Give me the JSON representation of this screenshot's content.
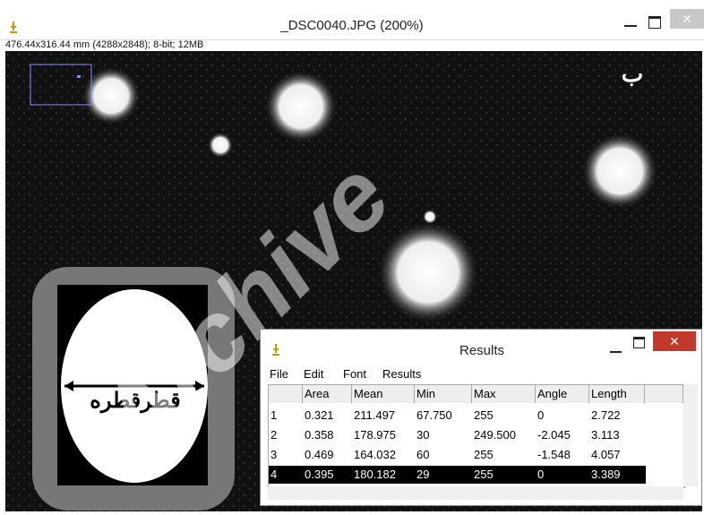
{
  "window": {
    "title": "_DSC0040.JPG (200%)",
    "info": "476.44x316.44 mm (4288x2848); 8-bit; 12MB"
  },
  "image": {
    "label": "ب",
    "inset_label": "قطرقطره",
    "watermark": "Archive"
  },
  "results": {
    "title": "Results",
    "menu": [
      "File",
      "Edit",
      "Font",
      "Results"
    ],
    "columns": [
      "Area",
      "Mean",
      "Min",
      "Max",
      "Angle",
      "Length"
    ],
    "rows": [
      [
        "1",
        "0.321",
        "211.497",
        "67.750",
        "255",
        "0",
        "2.722"
      ],
      [
        "2",
        "0.358",
        "178.975",
        "30",
        "249.500",
        "-2.045",
        "3.113"
      ],
      [
        "3",
        "0.469",
        "164.032",
        "60",
        "255",
        "-1.548",
        "4.057"
      ],
      [
        "4",
        "0.395",
        "180.182",
        "29",
        "255",
        "0",
        "3.389"
      ]
    ],
    "selected_row": 3
  }
}
